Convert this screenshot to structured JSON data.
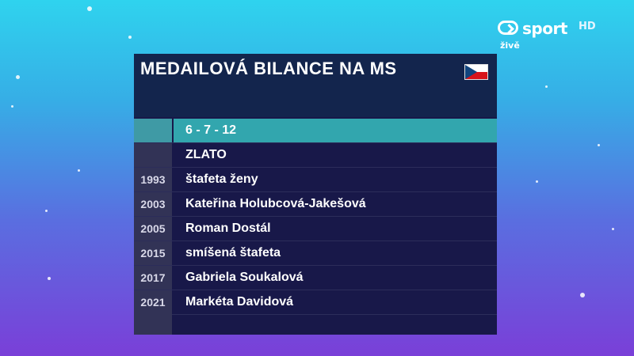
{
  "broadcaster": {
    "channel": "sport",
    "quality": "HD",
    "live_label": "živě"
  },
  "graphic": {
    "title": "MEDAILOVÁ BILANCE NA MS",
    "flag": "Czech Republic flag",
    "score": "6 - 7 - 12",
    "category": "ZLATO",
    "rows": [
      {
        "year": "1993",
        "name": "štafeta ženy"
      },
      {
        "year": "2003",
        "name": "Kateřina Holubcová-Jakešová"
      },
      {
        "year": "2005",
        "name": "Roman Dostál"
      },
      {
        "year": "2015",
        "name": "smíšená štafeta"
      },
      {
        "year": "2017",
        "name": "Gabriela Soukalová"
      },
      {
        "year": "2021",
        "name": "Markéta Davidová"
      }
    ]
  },
  "colors": {
    "panel": "#181849",
    "year_cell": "#323356",
    "score_highlight": "#32a6ae"
  }
}
